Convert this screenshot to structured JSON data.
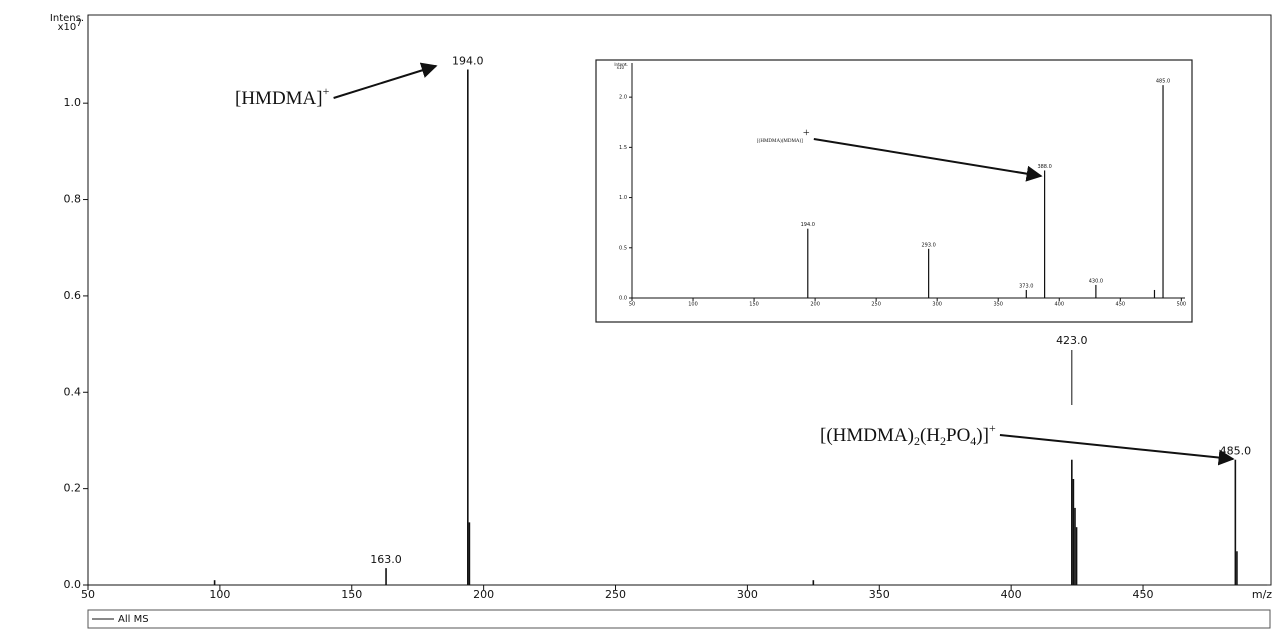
{
  "chart_data": [
    {
      "type": "stick",
      "y_label": "Intens.",
      "y_unit_base": "x10",
      "y_unit_exp": "7",
      "x_label": "m/z",
      "x": [
        98,
        163,
        194,
        194.6,
        325,
        423,
        423.6,
        424.2,
        424.8,
        485,
        485.6
      ],
      "values": [
        0.01,
        0.035,
        1.07,
        0.13,
        0.01,
        0.26,
        0.22,
        0.16,
        0.12,
        0.26,
        0.07
      ],
      "x_labels": [
        null,
        "163.0",
        "194.0",
        null,
        null,
        "423.0",
        null,
        null,
        null,
        "485.0",
        null
      ],
      "color": "#111111",
      "xlim": [
        50,
        497
      ],
      "ylim": [
        0,
        1.183
      ],
      "xticks": [
        50,
        100,
        150,
        200,
        250,
        300,
        350,
        400,
        450
      ],
      "yticks": [
        {
          "value": 0,
          "label": "0.0"
        },
        {
          "value": 0.2,
          "label": "0.2"
        },
        {
          "value": 0.4,
          "label": "0.4"
        },
        {
          "value": 0.6,
          "label": "0.6"
        },
        {
          "value": 0.8,
          "label": "0.8"
        },
        {
          "value": 1,
          "label": "1.0"
        }
      ],
      "legend": "All MS",
      "annotations": [
        {
          "parts": [
            {
              "text": "[HMDMA]"
            },
            {
              "text": "+",
              "shift": "sup"
            }
          ]
        },
        {
          "parts": [
            {
              "text": "[(HMDMA)"
            },
            {
              "text": "2",
              "shift": "sub"
            },
            {
              "text": "(H"
            },
            {
              "text": "2",
              "shift": "sub"
            },
            {
              "text": "PO"
            },
            {
              "text": "4",
              "shift": "sub"
            },
            {
              "text": ")]"
            },
            {
              "text": "+",
              "shift": "sup"
            }
          ]
        }
      ]
    },
    {
      "type": "stick",
      "y_label": "Intens.",
      "y_unit_base": "x10",
      "y_unit_exp": "7",
      "x": [
        194,
        293,
        373,
        388,
        430,
        478,
        485
      ],
      "values": [
        0.69,
        0.49,
        0.08,
        1.27,
        0.13,
        0.08,
        2.12
      ],
      "x_labels": [
        "194.0",
        "293.0",
        "373.0",
        "388.0",
        "430.0",
        null,
        "485.0"
      ],
      "color": "#111111",
      "xlim": [
        50,
        503
      ],
      "ylim": [
        0,
        2.34
      ],
      "xticks": [
        50,
        100,
        150,
        200,
        250,
        300,
        350,
        400,
        450,
        500
      ],
      "yticks": [
        {
          "value": 0,
          "label": "0.0"
        },
        {
          "value": 0.5,
          "label": "0.5"
        },
        {
          "value": 1,
          "label": "1.0"
        },
        {
          "value": 1.5,
          "label": "1.5"
        },
        {
          "value": 2,
          "label": "2.0"
        }
      ],
      "annotations": [
        {
          "parts": [
            {
              "text": "[(HMDMA)(MDMA)]"
            },
            {
              "text": "+",
              "shift": "sup"
            }
          ]
        }
      ]
    }
  ]
}
